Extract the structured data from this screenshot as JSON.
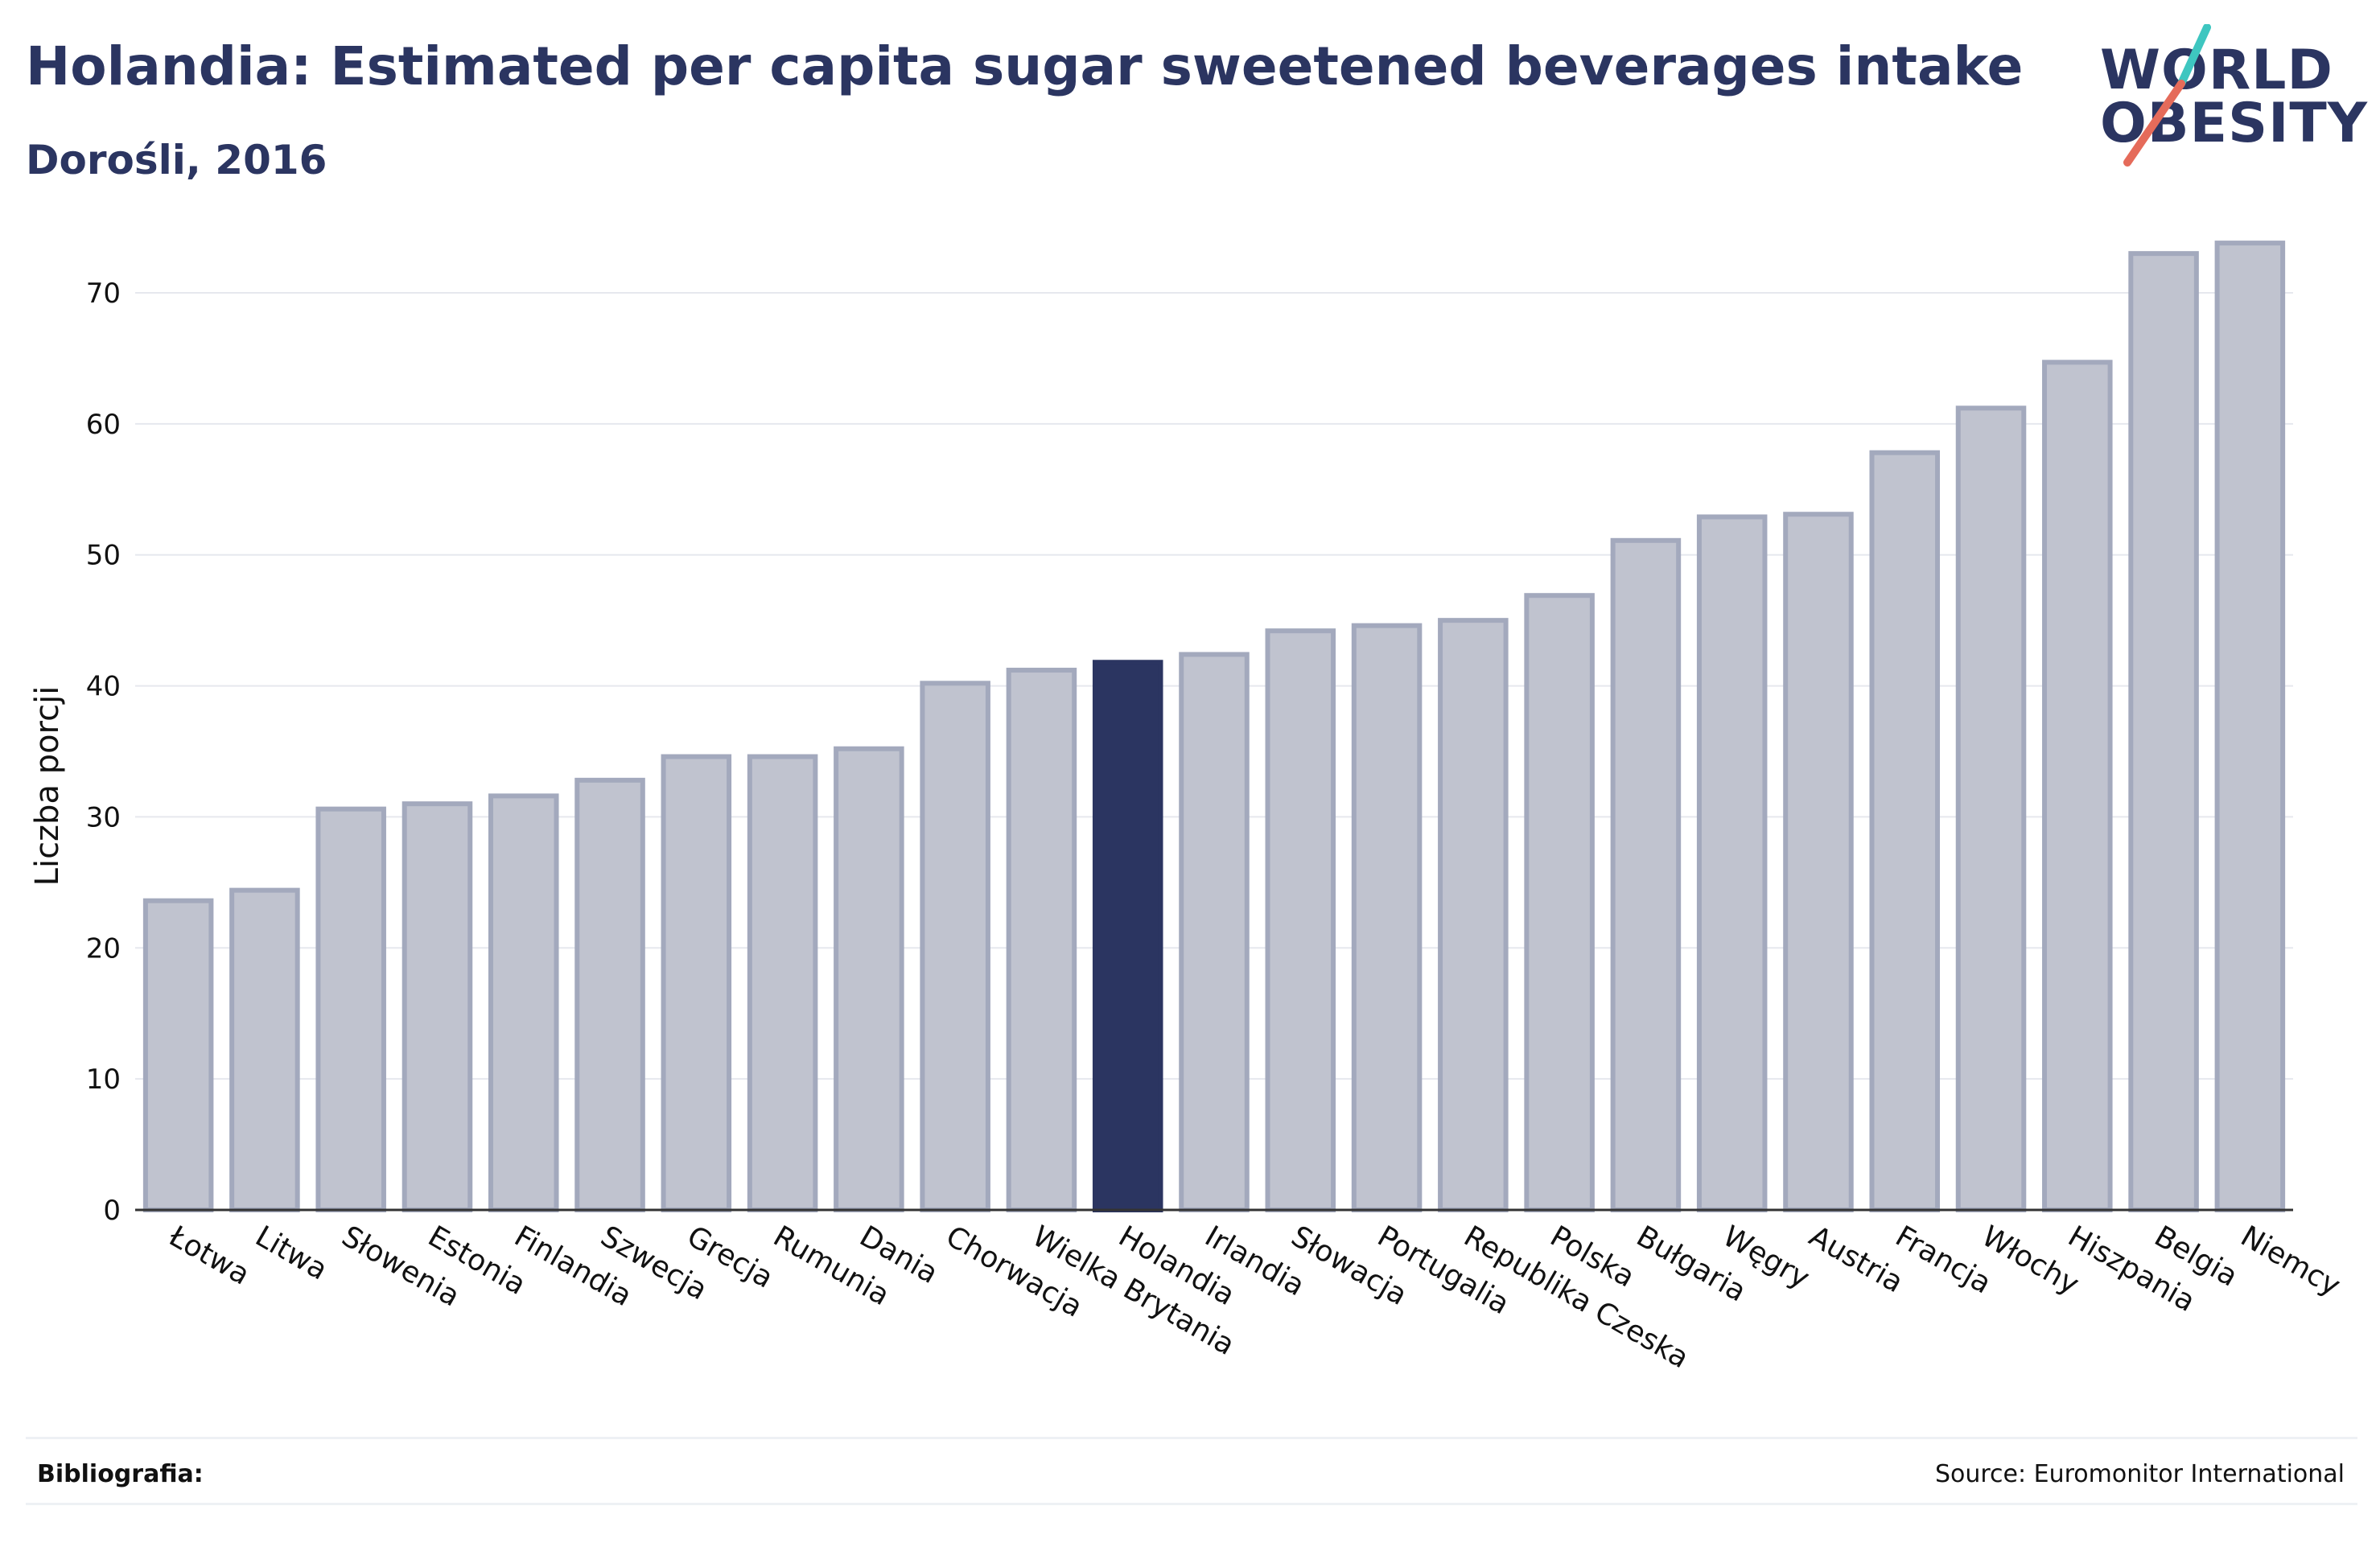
{
  "header": {
    "title": "Holandia: Estimated per capita sugar sweetened beverages intake",
    "subtitle": "Dorośli, 2016"
  },
  "logo": {
    "line1": "WORLD",
    "line2": "OBESITY"
  },
  "footer": {
    "bibliography_label": "Bibliografia:",
    "source": "Source: Euromonitor International"
  },
  "colors": {
    "highlight": "#2b3561",
    "bar": "#c0c3cf",
    "bar_border": "#a3a9bd",
    "logo_teal": "#3ec6c0",
    "logo_red": "#e56b5a"
  },
  "chart_data": {
    "type": "bar",
    "title": "Holandia: Estimated per capita sugar sweetened beverages intake",
    "subtitle": "Dorośli, 2016",
    "xlabel": "",
    "ylabel": "Liczba porcji",
    "ylim": [
      0,
      77
    ],
    "yticks": [
      0,
      10,
      20,
      30,
      40,
      50,
      60,
      70
    ],
    "grid": true,
    "highlight": "Holandia",
    "categories": [
      "Łotwa",
      "Litwa",
      "Słowenia",
      "Estonia",
      "Finlandia",
      "Szwecja",
      "Grecja",
      "Rumunia",
      "Dania",
      "Chorwacja",
      "Wielka Brytania",
      "Holandia",
      "Irlandia",
      "Słowacja",
      "Portugalia",
      "Republika Czeska",
      "Polska",
      "Bułgaria",
      "Węgry",
      "Austria",
      "Francja",
      "Włochy",
      "Hiszpania",
      "Belgia",
      "Niemcy"
    ],
    "values": [
      23.6,
      24.4,
      30.6,
      31.0,
      31.6,
      32.8,
      34.6,
      34.6,
      35.2,
      40.2,
      41.2,
      41.8,
      42.4,
      44.2,
      44.6,
      45.0,
      46.9,
      51.1,
      52.9,
      53.1,
      57.8,
      61.2,
      64.7,
      73.0,
      73.8
    ]
  }
}
